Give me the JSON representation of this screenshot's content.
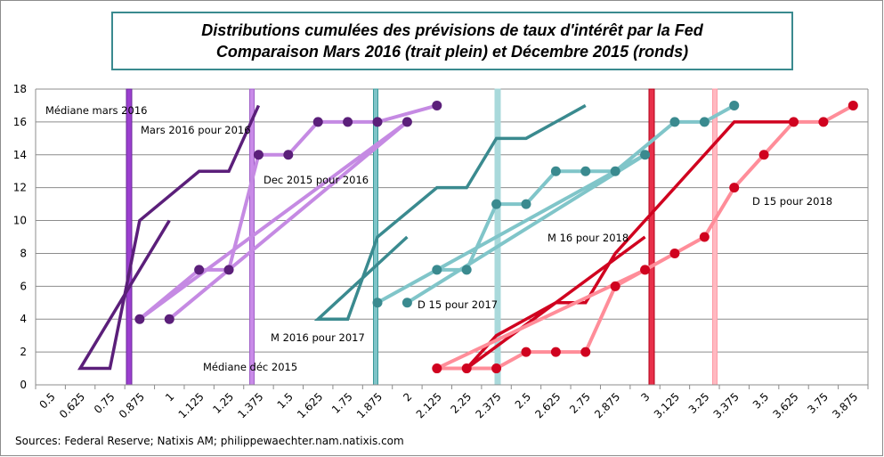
{
  "chart_data": {
    "type": "line",
    "title": [
      "Distributions cumulées des prévisions de taux d'intérêt par la Fed",
      "Comparaison Mars 2016 (trait plein) et Décembre 2015 (ronds)"
    ],
    "source": "Sources: Federal Reserve; Natixis AM; philippewaechter.nam.natixis.com",
    "categories": [
      "0.5",
      "0.625",
      "0.75",
      "0.875",
      "1",
      "1.125",
      "1.25",
      "1.375",
      "1.5",
      "1.625",
      "1.75",
      "1.875",
      "2",
      "2.125",
      "2.25",
      "2.375",
      "2.5",
      "2.625",
      "2.75",
      "2.875",
      "3",
      "3.125",
      "3.25",
      "3.375",
      "3.5",
      "3.625",
      "3.75",
      "3.875"
    ],
    "ylim": [
      0,
      18
    ],
    "yticks": [
      0,
      2,
      4,
      6,
      8,
      10,
      12,
      14,
      16,
      18
    ],
    "grid": true,
    "series": [
      {
        "name": "Mars 2016 pour 2016",
        "color": "#5b1f7a",
        "markers": false,
        "values": {
          "0.625": 1,
          "0.75": 1,
          "0.875": 10,
          "1": 10,
          "1.125": 13,
          "1.25": 13,
          "1.375": 17
        }
      },
      {
        "name": "Dec 2015 pour 2016",
        "color": "#c58ae3",
        "marker_color": "#5b1f7a",
        "markers": true,
        "values": {
          "0.875": 4,
          "1": 4,
          "1.125": 7,
          "1.25": 7,
          "1.375": 14,
          "1.5": 14,
          "1.625": 16,
          "1.75": 16,
          "1.875": 16,
          "2": 16,
          "2.125": 17
        }
      },
      {
        "name": "M 2016 pour 2017",
        "color": "#3a8a8f",
        "markers": false,
        "values": {
          "1.625": 4,
          "1.75": 4,
          "1.875": 9,
          "2": 9,
          "2.125": 12,
          "2.25": 12,
          "2.375": 15,
          "2.5": 15,
          "2.625": 16,
          "2.75": 17
        }
      },
      {
        "name": "D 15 pour 2017",
        "color": "#80c5c9",
        "marker_color": "#3a8a8f",
        "markers": true,
        "values": {
          "1.875": 5,
          "2": 5,
          "2.125": 7,
          "2.25": 7,
          "2.375": 11,
          "2.5": 11,
          "2.625": 13,
          "2.75": 13,
          "2.875": 13,
          "3": 14,
          "3.125": 16,
          "3.25": 16,
          "3.375": 17
        }
      },
      {
        "name": "M 16 pour 2018",
        "color": "#d0021f",
        "markers": false,
        "values": {
          "2.25": 1,
          "2.375": 3,
          "2.5": 4,
          "2.625": 5,
          "2.75": 5,
          "2.875": 8,
          "3": 9,
          "3.125": 12,
          "3.25": 14,
          "3.375": 16,
          "3.5": 16,
          "3.625": 16
        }
      },
      {
        "name": "D 15 pour 2018",
        "color": "#ff8d99",
        "marker_color": "#d0021f",
        "markers": true,
        "values": {
          "2.125": 1,
          "2.25": 1,
          "2.375": 1,
          "2.5": 2,
          "2.625": 2,
          "2.75": 2,
          "2.875": 6,
          "3": 7,
          "3.125": 8,
          "3.25": 9,
          "3.375": 12,
          "3.5": 14,
          "3.625": 16,
          "3.75": 16,
          "3.875": 17
        }
      }
    ],
    "median_lines": [
      {
        "label": "Médiane mars 2016",
        "color": "#9b3fcf",
        "border": "#6a2a9a"
      },
      {
        "label": "Médiane déc 2015",
        "color": "#c98be8",
        "border": "#a060c8"
      },
      {
        "label": "",
        "color": "#7fc4c8",
        "border": "#3a9a9a"
      },
      {
        "label": "",
        "color": "#a9d9db",
        "border": "#a9d9db"
      },
      {
        "label": "",
        "color": "#e8304a",
        "border": "#b00018"
      },
      {
        "label": "",
        "color": "#ffb9c1",
        "border": "#ff9aa6"
      }
    ],
    "annotations": [
      "Médiane mars 2016",
      "Mars 2016 pour 2016",
      "Dec 2015 pour 2016",
      "Médiane déc 2015",
      "M 2016 pour 2017",
      "D 15 pour 2017",
      "M 16 pour 2018",
      "D 15 pour 2018"
    ]
  },
  "colors": {
    "title_border": "#3a8a8f",
    "grid": "#8c8c8c"
  }
}
